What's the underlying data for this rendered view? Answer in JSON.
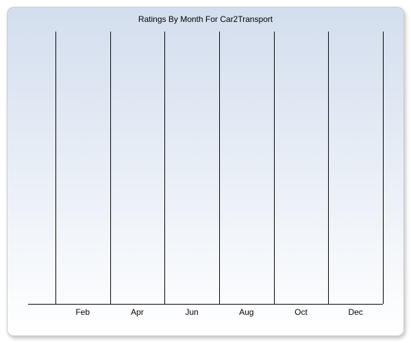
{
  "chart": {
    "type": "line",
    "title": "Ratings By Month For Car2Transport",
    "title_fontsize": 12,
    "title_color": "#000000",
    "background_gradient_top": "#d3deee",
    "background_gradient_bottom": "#ffffff",
    "border_color": "#cccccc",
    "border_radius": 10,
    "shadow_color": "rgba(0,0,0,0.25)",
    "gridline_color": "#000000",
    "axis_color": "#000000",
    "x": {
      "domain": [
        0,
        13
      ],
      "gridlines": [
        1,
        3,
        5,
        7,
        9,
        11,
        13
      ],
      "ticks": [
        {
          "pos": 2,
          "label": "Feb"
        },
        {
          "pos": 4,
          "label": "Apr"
        },
        {
          "pos": 6,
          "label": "Jun"
        },
        {
          "pos": 8,
          "label": "Aug"
        },
        {
          "pos": 10,
          "label": "Oct"
        },
        {
          "pos": 12,
          "label": "Dec"
        }
      ],
      "tick_fontsize": 12,
      "tick_color": "#000000"
    },
    "y": {
      "domain": [
        0,
        1
      ],
      "ticks": [],
      "label": ""
    },
    "series": []
  }
}
